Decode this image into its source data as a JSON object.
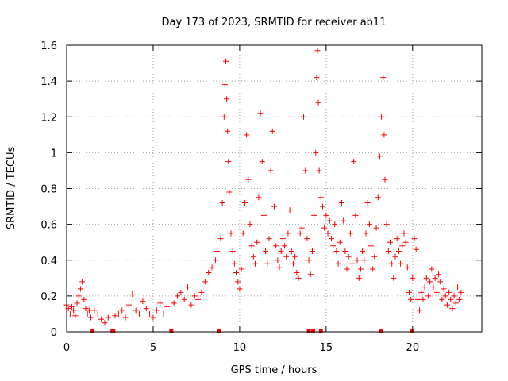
{
  "chart_data": {
    "type": "scatter",
    "title": "Day 173 of 2023, SRMTID for receiver ab11",
    "xlabel": "GPS time / hours",
    "ylabel": "SRMTID / TECUs",
    "xlim": [
      0,
      24
    ],
    "ylim": [
      0,
      1.6
    ],
    "xticks": [
      0,
      5,
      10,
      15,
      20
    ],
    "yticks": [
      0,
      0.2,
      0.4,
      0.6,
      0.8,
      1,
      1.2,
      1.4,
      1.6
    ],
    "ytick_labels": [
      "0",
      "0.2",
      "0.4",
      "0.6",
      "0.8",
      "1",
      "1.2",
      "1.4",
      "1.6"
    ],
    "grid": true,
    "marker": "plus",
    "color": "#ff0000",
    "gap_markers_x": [
      1.5,
      2.65,
      2.7,
      6.05,
      8.8,
      14.0,
      14.25,
      14.7,
      18.15,
      18.2,
      19.95
    ],
    "series": [
      {
        "name": "SRMTID",
        "points": [
          [
            0.0,
            0.15
          ],
          [
            0.1,
            0.13
          ],
          [
            0.2,
            0.1
          ],
          [
            0.3,
            0.14
          ],
          [
            0.4,
            0.12
          ],
          [
            0.5,
            0.09
          ],
          [
            0.6,
            0.16
          ],
          [
            0.7,
            0.2
          ],
          [
            0.8,
            0.24
          ],
          [
            0.9,
            0.28
          ],
          [
            1.0,
            0.18
          ],
          [
            1.1,
            0.13
          ],
          [
            1.2,
            0.1
          ],
          [
            1.3,
            0.12
          ],
          [
            1.4,
            0.08
          ],
          [
            1.6,
            0.12
          ],
          [
            1.8,
            0.1
          ],
          [
            2.0,
            0.07
          ],
          [
            2.2,
            0.05
          ],
          [
            2.4,
            0.08
          ],
          [
            2.8,
            0.09
          ],
          [
            3.0,
            0.1
          ],
          [
            3.2,
            0.12
          ],
          [
            3.4,
            0.08
          ],
          [
            3.6,
            0.15
          ],
          [
            3.8,
            0.21
          ],
          [
            4.0,
            0.12
          ],
          [
            4.2,
            0.1
          ],
          [
            4.4,
            0.17
          ],
          [
            4.6,
            0.13
          ],
          [
            4.8,
            0.1
          ],
          [
            5.0,
            0.08
          ],
          [
            5.2,
            0.12
          ],
          [
            5.4,
            0.16
          ],
          [
            5.6,
            0.1
          ],
          [
            5.8,
            0.14
          ],
          [
            6.2,
            0.16
          ],
          [
            6.4,
            0.2
          ],
          [
            6.6,
            0.22
          ],
          [
            6.8,
            0.18
          ],
          [
            7.0,
            0.25
          ],
          [
            7.2,
            0.15
          ],
          [
            7.4,
            0.2
          ],
          [
            7.6,
            0.18
          ],
          [
            7.8,
            0.22
          ],
          [
            8.0,
            0.28
          ],
          [
            8.2,
            0.33
          ],
          [
            8.4,
            0.36
          ],
          [
            8.6,
            0.4
          ],
          [
            8.7,
            0.45
          ],
          [
            8.9,
            0.52
          ],
          [
            9.0,
            0.72
          ],
          [
            9.1,
            1.2
          ],
          [
            9.15,
            1.38
          ],
          [
            9.2,
            1.51
          ],
          [
            9.25,
            1.3
          ],
          [
            9.3,
            1.12
          ],
          [
            9.35,
            0.95
          ],
          [
            9.4,
            0.78
          ],
          [
            9.5,
            0.55
          ],
          [
            9.6,
            0.45
          ],
          [
            9.7,
            0.38
          ],
          [
            9.8,
            0.33
          ],
          [
            9.9,
            0.28
          ],
          [
            10.0,
            0.24
          ],
          [
            10.1,
            0.35
          ],
          [
            10.2,
            0.55
          ],
          [
            10.3,
            0.72
          ],
          [
            10.4,
            1.1
          ],
          [
            10.5,
            0.85
          ],
          [
            10.6,
            0.6
          ],
          [
            10.7,
            0.48
          ],
          [
            10.8,
            0.42
          ],
          [
            10.9,
            0.38
          ],
          [
            11.0,
            0.5
          ],
          [
            11.1,
            0.75
          ],
          [
            11.2,
            1.22
          ],
          [
            11.3,
            0.95
          ],
          [
            11.4,
            0.65
          ],
          [
            11.5,
            0.45
          ],
          [
            11.6,
            0.38
          ],
          [
            11.7,
            0.52
          ],
          [
            11.8,
            0.9
          ],
          [
            11.9,
            1.12
          ],
          [
            12.0,
            0.7
          ],
          [
            12.1,
            0.48
          ],
          [
            12.2,
            0.4
          ],
          [
            12.3,
            0.36
          ],
          [
            12.4,
            0.45
          ],
          [
            12.5,
            0.52
          ],
          [
            12.6,
            0.48
          ],
          [
            12.7,
            0.42
          ],
          [
            12.8,
            0.55
          ],
          [
            12.9,
            0.68
          ],
          [
            13.0,
            0.45
          ],
          [
            13.1,
            0.38
          ],
          [
            13.2,
            0.42
          ],
          [
            13.3,
            0.33
          ],
          [
            13.4,
            0.3
          ],
          [
            13.5,
            0.55
          ],
          [
            13.6,
            0.58
          ],
          [
            13.7,
            1.2
          ],
          [
            13.8,
            0.9
          ],
          [
            13.9,
            0.52
          ],
          [
            14.0,
            0.4
          ],
          [
            14.1,
            0.32
          ],
          [
            14.2,
            0.45
          ],
          [
            14.3,
            0.65
          ],
          [
            14.4,
            1.0
          ],
          [
            14.45,
            1.42
          ],
          [
            14.5,
            1.57
          ],
          [
            14.55,
            1.28
          ],
          [
            14.6,
            0.9
          ],
          [
            14.7,
            0.75
          ],
          [
            14.8,
            0.7
          ],
          [
            14.9,
            0.58
          ],
          [
            15.0,
            0.65
          ],
          [
            15.1,
            0.55
          ],
          [
            15.2,
            0.62
          ],
          [
            15.3,
            0.52
          ],
          [
            15.4,
            0.48
          ],
          [
            15.5,
            0.6
          ],
          [
            15.6,
            0.45
          ],
          [
            15.7,
            0.38
          ],
          [
            15.8,
            0.5
          ],
          [
            15.9,
            0.72
          ],
          [
            16.0,
            0.62
          ],
          [
            16.1,
            0.45
          ],
          [
            16.2,
            0.35
          ],
          [
            16.3,
            0.42
          ],
          [
            16.4,
            0.55
          ],
          [
            16.5,
            0.38
          ],
          [
            16.6,
            0.95
          ],
          [
            16.7,
            0.65
          ],
          [
            16.8,
            0.4
          ],
          [
            16.9,
            0.3
          ],
          [
            17.0,
            0.35
          ],
          [
            17.1,
            0.45
          ],
          [
            17.2,
            0.4
          ],
          [
            17.3,
            0.55
          ],
          [
            17.4,
            0.72
          ],
          [
            17.5,
            0.6
          ],
          [
            17.6,
            0.48
          ],
          [
            17.7,
            0.35
          ],
          [
            17.8,
            0.42
          ],
          [
            17.9,
            0.58
          ],
          [
            18.0,
            0.75
          ],
          [
            18.1,
            0.98
          ],
          [
            18.2,
            1.2
          ],
          [
            18.3,
            1.42
          ],
          [
            18.35,
            1.1
          ],
          [
            18.4,
            0.85
          ],
          [
            18.5,
            0.6
          ],
          [
            18.6,
            0.45
          ],
          [
            18.7,
            0.5
          ],
          [
            18.8,
            0.38
          ],
          [
            18.9,
            0.3
          ],
          [
            19.0,
            0.42
          ],
          [
            19.1,
            0.52
          ],
          [
            19.2,
            0.45
          ],
          [
            19.3,
            0.38
          ],
          [
            19.4,
            0.48
          ],
          [
            19.5,
            0.55
          ],
          [
            19.6,
            0.5
          ],
          [
            19.7,
            0.36
          ],
          [
            19.8,
            0.22
          ],
          [
            19.9,
            0.18
          ],
          [
            20.0,
            0.3
          ],
          [
            20.1,
            0.52
          ],
          [
            20.2,
            0.46
          ],
          [
            20.3,
            0.18
          ],
          [
            20.4,
            0.12
          ],
          [
            20.5,
            0.22
          ],
          [
            20.6,
            0.18
          ],
          [
            20.7,
            0.25
          ],
          [
            20.8,
            0.3
          ],
          [
            20.9,
            0.2
          ],
          [
            21.0,
            0.28
          ],
          [
            21.1,
            0.35
          ],
          [
            21.2,
            0.25
          ],
          [
            21.3,
            0.3
          ],
          [
            21.4,
            0.22
          ],
          [
            21.5,
            0.32
          ],
          [
            21.6,
            0.28
          ],
          [
            21.7,
            0.18
          ],
          [
            21.8,
            0.24
          ],
          [
            21.9,
            0.2
          ],
          [
            22.0,
            0.15
          ],
          [
            22.1,
            0.22
          ],
          [
            22.2,
            0.18
          ],
          [
            22.3,
            0.13
          ],
          [
            22.4,
            0.2
          ],
          [
            22.5,
            0.16
          ],
          [
            22.6,
            0.25
          ],
          [
            22.7,
            0.18
          ],
          [
            22.8,
            0.22
          ]
        ]
      }
    ]
  }
}
